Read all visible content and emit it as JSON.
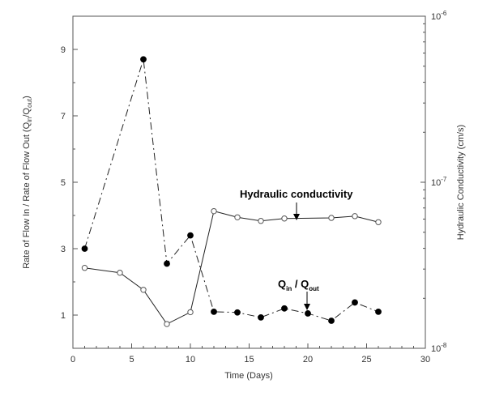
{
  "chart_data": {
    "type": "line",
    "xlabel": "Time (Days)",
    "ylabel_left": "Rate of Flow In / Rate of Flow Out (Q",
    "ylabel_left_sub1": "in",
    "ylabel_left_mid": "/Q",
    "ylabel_left_sub2": "out",
    "ylabel_left_end": ")",
    "ylabel_right": "Hydraulic Conductivity (cm/s)",
    "xlim": [
      0,
      30
    ],
    "ylim_left": [
      0,
      10
    ],
    "ylim_right": [
      1e-08,
      1e-06
    ],
    "y_right_scale": "log",
    "x_ticks": [
      "0",
      "5",
      "10",
      "15",
      "20",
      "25",
      "30"
    ],
    "y_left_ticks": [
      "1",
      "3",
      "5",
      "7",
      "9"
    ],
    "y_right_ticks": [
      {
        "base": "10",
        "exp": "-8"
      },
      {
        "base": "10",
        "exp": "-7"
      },
      {
        "base": "10",
        "exp": "-6"
      }
    ],
    "series": [
      {
        "axis": "left",
        "marker": "filled-circle",
        "line": "dashed",
        "x": [
          1,
          6,
          8,
          10,
          12,
          14,
          16,
          18,
          20,
          22,
          24,
          26
        ],
        "y": [
          3.0,
          8.7,
          2.55,
          3.4,
          1.1,
          1.08,
          0.93,
          1.2,
          1.05,
          0.83,
          1.38,
          1.1
        ]
      },
      {
        "axis": "right",
        "marker": "open-circle",
        "line": "solid",
        "x": [
          1,
          4,
          6,
          8,
          10,
          12,
          14,
          16,
          18,
          22,
          24,
          26
        ],
        "y": [
          3.05e-08,
          2.85e-08,
          2.25e-08,
          1.4e-08,
          1.65e-08,
          6.7e-08,
          6.15e-08,
          5.85e-08,
          6.05e-08,
          6.1e-08,
          6.25e-08,
          5.75e-08
        ]
      }
    ],
    "annotations": [
      {
        "text": "Hydraulic conductivity",
        "arrow_to": {
          "x": 19.2,
          "series": "right",
          "y": 6.05e-08
        }
      },
      {
        "text_main": "Q",
        "sub_in": "in",
        "slash": " / ",
        "text_main2": "Q",
        "sub_out": "out",
        "arrow_to": {
          "x": 19.9,
          "series": "left",
          "y": 1.0
        }
      }
    ],
    "colors": {
      "axis": "#555555",
      "series": "#222222",
      "marker_open_fill": "#ffffff"
    }
  }
}
